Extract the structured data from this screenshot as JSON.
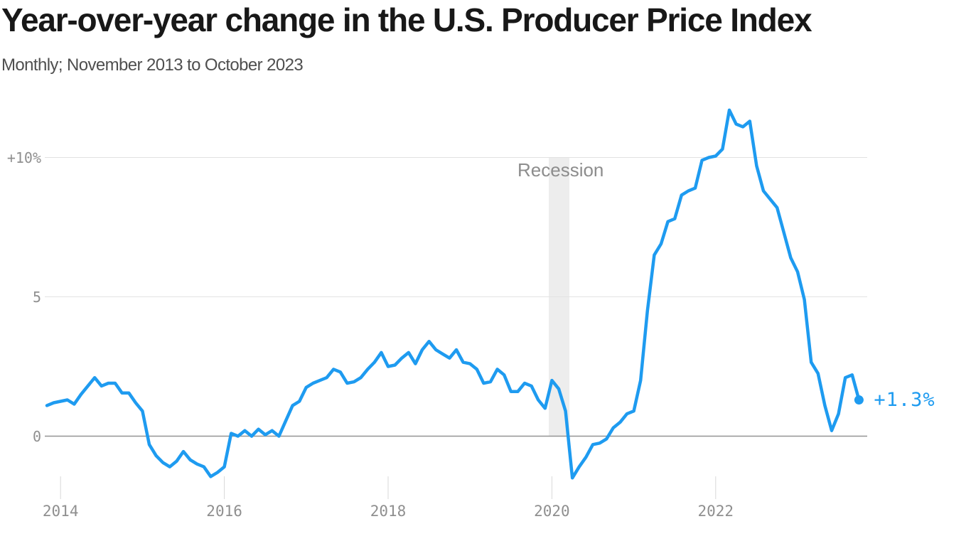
{
  "header": {
    "title": "Year-over-year change in the U.S. Producer Price Index",
    "subtitle": "Monthly; November 2013 to October 2023"
  },
  "chart_data": {
    "type": "line",
    "series_name": "U.S. Producer Price Index, year-over-year % change",
    "frequency": "monthly",
    "x_start": "2013-11",
    "x_end": "2023-10",
    "unit": "percent",
    "values": [
      1.1,
      1.2,
      1.25,
      1.3,
      1.15,
      1.5,
      1.8,
      2.1,
      1.8,
      1.9,
      1.9,
      1.55,
      1.55,
      1.2,
      0.9,
      -0.3,
      -0.7,
      -0.95,
      -1.1,
      -0.9,
      -0.55,
      -0.85,
      -1.0,
      -1.1,
      -1.45,
      -1.3,
      -1.1,
      0.1,
      0.0,
      0.2,
      0.0,
      0.25,
      0.05,
      0.2,
      0.0,
      0.55,
      1.1,
      1.25,
      1.75,
      1.9,
      2.0,
      2.1,
      2.4,
      2.3,
      1.9,
      1.95,
      2.1,
      2.4,
      2.65,
      3.0,
      2.5,
      2.55,
      2.8,
      3.0,
      2.6,
      3.1,
      3.4,
      3.1,
      2.95,
      2.8,
      3.1,
      2.65,
      2.6,
      2.4,
      1.9,
      1.95,
      2.4,
      2.2,
      1.6,
      1.6,
      1.9,
      1.8,
      1.3,
      1.0,
      2.0,
      1.7,
      0.9,
      -1.5,
      -1.1,
      -0.75,
      -0.3,
      -0.25,
      -0.1,
      0.3,
      0.5,
      0.8,
      0.9,
      2.0,
      4.5,
      6.5,
      6.9,
      7.7,
      7.8,
      8.65,
      8.8,
      8.9,
      9.9,
      10.0,
      10.05,
      10.3,
      11.7,
      11.2,
      11.1,
      11.3,
      9.7,
      8.8,
      8.5,
      8.2,
      7.3,
      6.4,
      5.9,
      4.9,
      2.65,
      2.25,
      1.1,
      0.2,
      0.8,
      2.1,
      2.2,
      1.3
    ],
    "y_ticks": [
      {
        "label": "+10%",
        "value": 10
      },
      {
        "label": "5",
        "value": 5
      },
      {
        "label": "0",
        "value": 0
      }
    ],
    "x_ticks": [
      {
        "label": "2014",
        "month_index": 2
      },
      {
        "label": "2016",
        "month_index": 26
      },
      {
        "label": "2018",
        "month_index": 50
      },
      {
        "label": "2020",
        "month_index": 74
      },
      {
        "label": "2022",
        "month_index": 98
      }
    ],
    "ylim": [
      -2.5,
      12.5
    ],
    "grid": "horizontal",
    "legend": "none",
    "annotations": {
      "recession_label": "Recession",
      "end_label": "+1.3%",
      "end_value": 1.3
    },
    "colors": {
      "line": "#1e9bf0",
      "end_dot": "#1e9bf0",
      "end_label": "#1e9bf0",
      "recession_band": "#ededed",
      "gridline": "#e2e2e2",
      "zero_line": "#949494",
      "tick_mark": "#d8d8d8",
      "tick_label": "#8f8f8f",
      "annotation_text": "#8d8d8d",
      "title_text": "#181818",
      "subtitle_text": "#4f4f4f"
    }
  }
}
